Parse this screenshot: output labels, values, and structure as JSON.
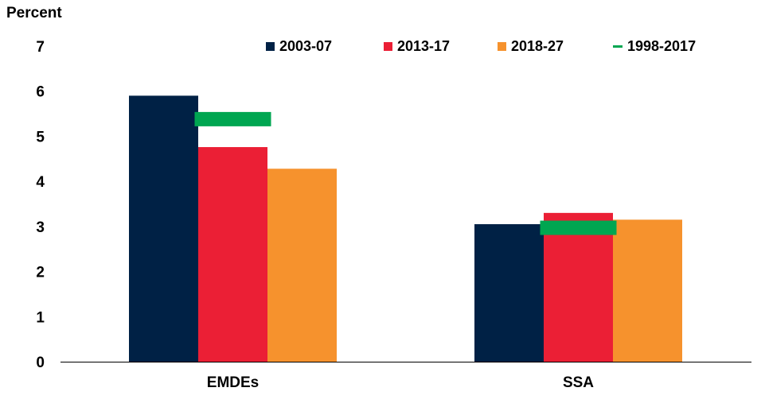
{
  "chart_data": {
    "type": "bar",
    "ylabel": "Percent",
    "ylim": [
      0,
      7
    ],
    "yticks": [
      0,
      1,
      2,
      3,
      4,
      5,
      6,
      7
    ],
    "categories": [
      "EMDEs",
      "SSA"
    ],
    "series": [
      {
        "name": "2003-07",
        "color": "#002145",
        "values": [
          5.9,
          3.05
        ]
      },
      {
        "name": "2013-17",
        "color": "#EB1F35",
        "values": [
          4.76,
          3.3
        ]
      },
      {
        "name": "2018-27",
        "color": "#F6922D",
        "values": [
          4.28,
          3.15
        ]
      }
    ],
    "markers": {
      "name": "1998-2017",
      "color": "#00A651",
      "values": [
        5.38,
        2.97
      ]
    },
    "grid": false,
    "legend_position": "top"
  }
}
